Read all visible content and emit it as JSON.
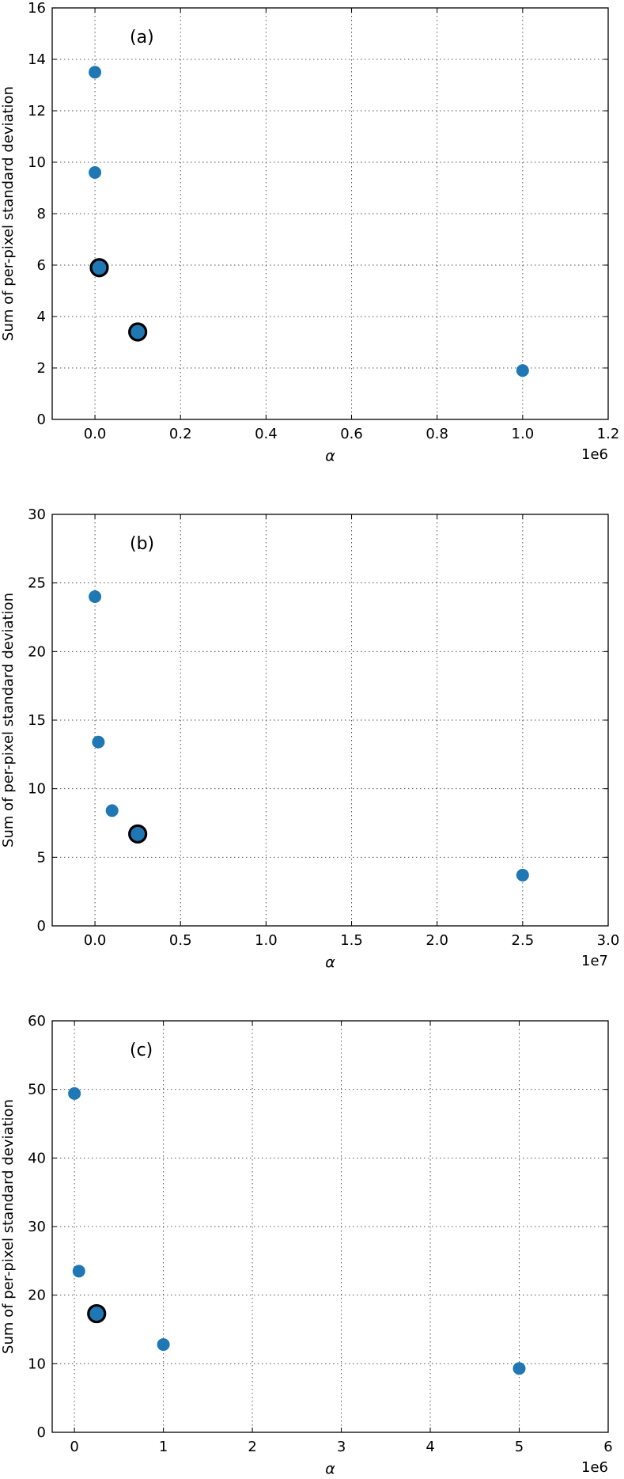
{
  "chart_data": [
    {
      "type": "scatter",
      "panel_label": "(a)",
      "xlabel": "α",
      "ylabel": "Sum of per-pixel standard deviation",
      "offset_text": "1e6",
      "xlim": [
        -0.1,
        1.2
      ],
      "ylim": [
        0,
        16
      ],
      "xticks": [
        0.0,
        0.2,
        0.4,
        0.6,
        0.8,
        1.0,
        1.2
      ],
      "xtick_labels": [
        "0.0",
        "0.2",
        "0.4",
        "0.6",
        "0.8",
        "1.0",
        "1.2"
      ],
      "yticks": [
        0,
        2,
        4,
        6,
        8,
        10,
        12,
        14,
        16
      ],
      "ytick_labels": [
        "0",
        "2",
        "4",
        "6",
        "8",
        "10",
        "12",
        "14",
        "16"
      ],
      "grid": true,
      "points": [
        {
          "x": 0.0,
          "y": 13.5,
          "highlight": false
        },
        {
          "x": 0.0,
          "y": 9.6,
          "highlight": false
        },
        {
          "x": 0.01,
          "y": 5.9,
          "highlight": true
        },
        {
          "x": 0.1,
          "y": 3.4,
          "highlight": true
        },
        {
          "x": 1.0,
          "y": 1.9,
          "highlight": false
        }
      ]
    },
    {
      "type": "scatter",
      "panel_label": "(b)",
      "xlabel": "α",
      "ylabel": "Sum of per-pixel standard deviation",
      "offset_text": "1e7",
      "xlim": [
        -0.25,
        3.0
      ],
      "ylim": [
        0,
        30
      ],
      "xticks": [
        0.0,
        0.5,
        1.0,
        1.5,
        2.0,
        2.5,
        3.0
      ],
      "xtick_labels": [
        "0.0",
        "0.5",
        "1.0",
        "1.5",
        "2.0",
        "2.5",
        "3.0"
      ],
      "yticks": [
        0,
        5,
        10,
        15,
        20,
        25,
        30
      ],
      "ytick_labels": [
        "0",
        "5",
        "10",
        "15",
        "20",
        "25",
        "30"
      ],
      "grid": true,
      "points": [
        {
          "x": 0.0,
          "y": 24.0,
          "highlight": false
        },
        {
          "x": 0.02,
          "y": 13.4,
          "highlight": false
        },
        {
          "x": 0.1,
          "y": 8.4,
          "highlight": false
        },
        {
          "x": 0.25,
          "y": 6.7,
          "highlight": true
        },
        {
          "x": 2.5,
          "y": 3.7,
          "highlight": false
        }
      ]
    },
    {
      "type": "scatter",
      "panel_label": "(c)",
      "xlabel": "α",
      "ylabel": "Sum of per-pixel standard deviation",
      "offset_text": "1e6",
      "xlim": [
        -0.25,
        6.0
      ],
      "ylim": [
        0,
        60
      ],
      "xticks": [
        0,
        1,
        2,
        3,
        4,
        5,
        6
      ],
      "xtick_labels": [
        "0",
        "1",
        "2",
        "3",
        "4",
        "5",
        "6"
      ],
      "yticks": [
        0,
        10,
        20,
        30,
        40,
        50,
        60
      ],
      "ytick_labels": [
        "0",
        "10",
        "20",
        "30",
        "40",
        "50",
        "60"
      ],
      "grid": true,
      "points": [
        {
          "x": 0.0,
          "y": 49.4,
          "highlight": false
        },
        {
          "x": 0.05,
          "y": 23.5,
          "highlight": false
        },
        {
          "x": 0.25,
          "y": 17.3,
          "highlight": true
        },
        {
          "x": 1.0,
          "y": 12.8,
          "highlight": false
        },
        {
          "x": 5.0,
          "y": 9.3,
          "highlight": false
        }
      ]
    }
  ],
  "colors": {
    "point_fill": "#1f77b4",
    "highlight_stroke": "#000000",
    "grid": "#555555",
    "axes": "#000000"
  }
}
